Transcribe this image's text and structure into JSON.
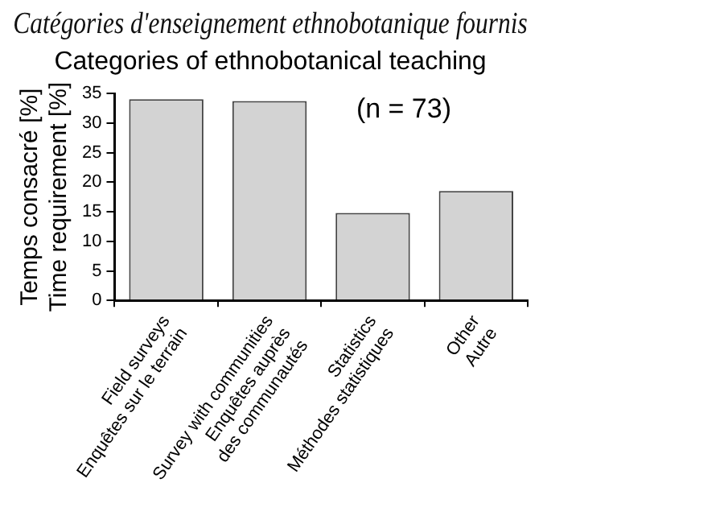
{
  "chart_data": {
    "type": "bar",
    "title": "Catégories d'enseignement ethnobotanique fournis",
    "subtitle": "Categories of ethnobotanical teaching",
    "annotations": [
      "(n = 73)"
    ],
    "ylabel": "Temps consacré [%]\nTime requirement [%]",
    "categories": [
      "Field surveys\nEnquêtes sur le terrain",
      "Survey with communities\nEnquêtes auprès\ndes communautés",
      "Statistics\nMéthodes statistiques",
      "Other\nAutre"
    ],
    "values": [
      34,
      33.7,
      14.8,
      18.5
    ],
    "color": "#d3d3d3",
    "ylim": [
      0,
      35
    ],
    "yticks": [
      0,
      5,
      10,
      15,
      20,
      25,
      30,
      35
    ],
    "grid": false,
    "legend": false
  }
}
